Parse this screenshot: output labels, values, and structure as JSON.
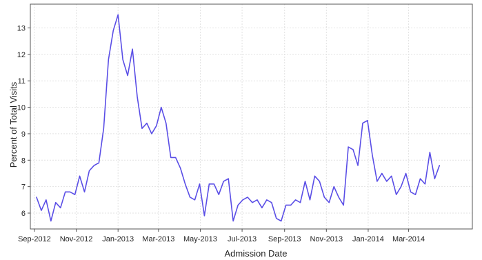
{
  "chart_data": {
    "type": "line",
    "title": "",
    "xlabel": "Admission Date",
    "ylabel": "Percent of Total Visits",
    "grid": true,
    "legend": "none",
    "line_color": "#5a4ee6",
    "axis_color": "#555555",
    "grid_color": "#e2e2e2",
    "x_type": "date",
    "xlim": [
      "2012-08-26",
      "2014-06-02"
    ],
    "ylim": [
      5.4,
      13.9
    ],
    "yticks": [
      6,
      7,
      8,
      9,
      10,
      11,
      12,
      13
    ],
    "xticks": [
      {
        "date": "2012-09-01",
        "label": "Sep-2012"
      },
      {
        "date": "2012-11-01",
        "label": "Nov-2012"
      },
      {
        "date": "2013-01-01",
        "label": "Jan-2013"
      },
      {
        "date": "2013-03-01",
        "label": "Mar-2013"
      },
      {
        "date": "2013-05-01",
        "label": "May-2013"
      },
      {
        "date": "2013-07-01",
        "label": "Jul-2013"
      },
      {
        "date": "2013-09-01",
        "label": "Sep-2013"
      },
      {
        "date": "2013-11-01",
        "label": "Nov-2013"
      },
      {
        "date": "2014-01-01",
        "label": "Jan-2014"
      },
      {
        "date": "2014-03-01",
        "label": "Mar-2014"
      }
    ],
    "series": [
      {
        "points": [
          [
            "2012-09-04",
            6.6
          ],
          [
            "2012-09-11",
            6.1
          ],
          [
            "2012-09-18",
            6.5
          ],
          [
            "2012-09-25",
            5.7
          ],
          [
            "2012-10-02",
            6.4
          ],
          [
            "2012-10-09",
            6.2
          ],
          [
            "2012-10-16",
            6.8
          ],
          [
            "2012-10-23",
            6.8
          ],
          [
            "2012-10-30",
            6.7
          ],
          [
            "2012-11-06",
            7.4
          ],
          [
            "2012-11-13",
            6.8
          ],
          [
            "2012-11-20",
            7.6
          ],
          [
            "2012-11-27",
            7.8
          ],
          [
            "2012-12-04",
            7.9
          ],
          [
            "2012-12-11",
            9.2
          ],
          [
            "2012-12-18",
            11.8
          ],
          [
            "2012-12-25",
            12.9
          ],
          [
            "2013-01-01",
            13.5
          ],
          [
            "2013-01-08",
            11.8
          ],
          [
            "2013-01-15",
            11.2
          ],
          [
            "2013-01-22",
            12.2
          ],
          [
            "2013-01-29",
            10.4
          ],
          [
            "2013-02-05",
            9.2
          ],
          [
            "2013-02-12",
            9.4
          ],
          [
            "2013-02-19",
            9.0
          ],
          [
            "2013-02-26",
            9.3
          ],
          [
            "2013-03-05",
            10.0
          ],
          [
            "2013-03-12",
            9.4
          ],
          [
            "2013-03-19",
            8.1
          ],
          [
            "2013-03-26",
            8.1
          ],
          [
            "2013-04-02",
            7.7
          ],
          [
            "2013-04-09",
            7.1
          ],
          [
            "2013-04-16",
            6.6
          ],
          [
            "2013-04-23",
            6.5
          ],
          [
            "2013-04-30",
            7.1
          ],
          [
            "2013-05-07",
            5.9
          ],
          [
            "2013-05-14",
            7.1
          ],
          [
            "2013-05-21",
            7.1
          ],
          [
            "2013-05-28",
            6.7
          ],
          [
            "2013-06-04",
            7.2
          ],
          [
            "2013-06-11",
            7.3
          ],
          [
            "2013-06-18",
            5.7
          ],
          [
            "2013-06-25",
            6.3
          ],
          [
            "2013-07-02",
            6.5
          ],
          [
            "2013-07-09",
            6.6
          ],
          [
            "2013-07-16",
            6.4
          ],
          [
            "2013-07-23",
            6.5
          ],
          [
            "2013-07-30",
            6.2
          ],
          [
            "2013-08-06",
            6.5
          ],
          [
            "2013-08-13",
            6.4
          ],
          [
            "2013-08-20",
            5.8
          ],
          [
            "2013-08-27",
            5.7
          ],
          [
            "2013-09-03",
            6.3
          ],
          [
            "2013-09-10",
            6.3
          ],
          [
            "2013-09-17",
            6.5
          ],
          [
            "2013-09-24",
            6.4
          ],
          [
            "2013-10-01",
            7.2
          ],
          [
            "2013-10-08",
            6.5
          ],
          [
            "2013-10-15",
            7.4
          ],
          [
            "2013-10-22",
            7.2
          ],
          [
            "2013-10-29",
            6.6
          ],
          [
            "2013-11-05",
            6.4
          ],
          [
            "2013-11-12",
            7.0
          ],
          [
            "2013-11-19",
            6.6
          ],
          [
            "2013-11-26",
            6.3
          ],
          [
            "2013-12-03",
            8.5
          ],
          [
            "2013-12-10",
            8.4
          ],
          [
            "2013-12-17",
            7.8
          ],
          [
            "2013-12-24",
            9.4
          ],
          [
            "2013-12-31",
            9.5
          ],
          [
            "2014-01-07",
            8.2
          ],
          [
            "2014-01-14",
            7.2
          ],
          [
            "2014-01-21",
            7.5
          ],
          [
            "2014-01-28",
            7.2
          ],
          [
            "2014-02-04",
            7.4
          ],
          [
            "2014-02-11",
            6.7
          ],
          [
            "2014-02-18",
            7.0
          ],
          [
            "2014-02-25",
            7.5
          ],
          [
            "2014-03-04",
            6.8
          ],
          [
            "2014-03-11",
            6.7
          ],
          [
            "2014-03-18",
            7.3
          ],
          [
            "2014-03-25",
            7.1
          ],
          [
            "2014-04-01",
            8.3
          ],
          [
            "2014-04-08",
            7.3
          ],
          [
            "2014-04-15",
            7.8
          ]
        ]
      }
    ]
  }
}
